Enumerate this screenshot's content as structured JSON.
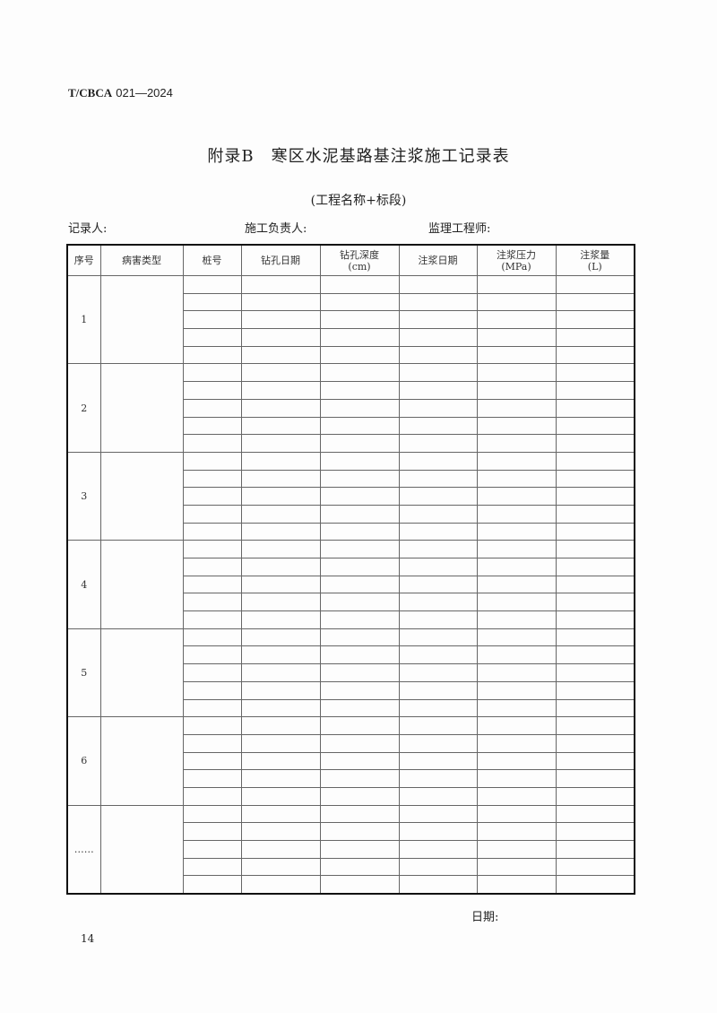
{
  "header": {
    "std_prefix": "T/CBCA",
    "std_number": "021—2024"
  },
  "title": "附录B　寒区水泥基路基注浆施工记录表",
  "subtitle": "(工程名称+标段)",
  "signatures": {
    "recorder": "记录人:",
    "construction_lead": "施工负责人:",
    "supervisor": "监理工程师:"
  },
  "table": {
    "columns": [
      "序号",
      "病害类型",
      "桩号",
      "钻孔日期",
      "钻孔深度\n(cm)",
      "注浆日期",
      "注浆压力\n(MPa)",
      "注浆量\n(L)"
    ],
    "groups": [
      "1",
      "2",
      "3",
      "4",
      "5",
      "6",
      "……"
    ],
    "rows_per_group": 5
  },
  "footer": {
    "date_label": "日期:",
    "page_number": "14"
  }
}
